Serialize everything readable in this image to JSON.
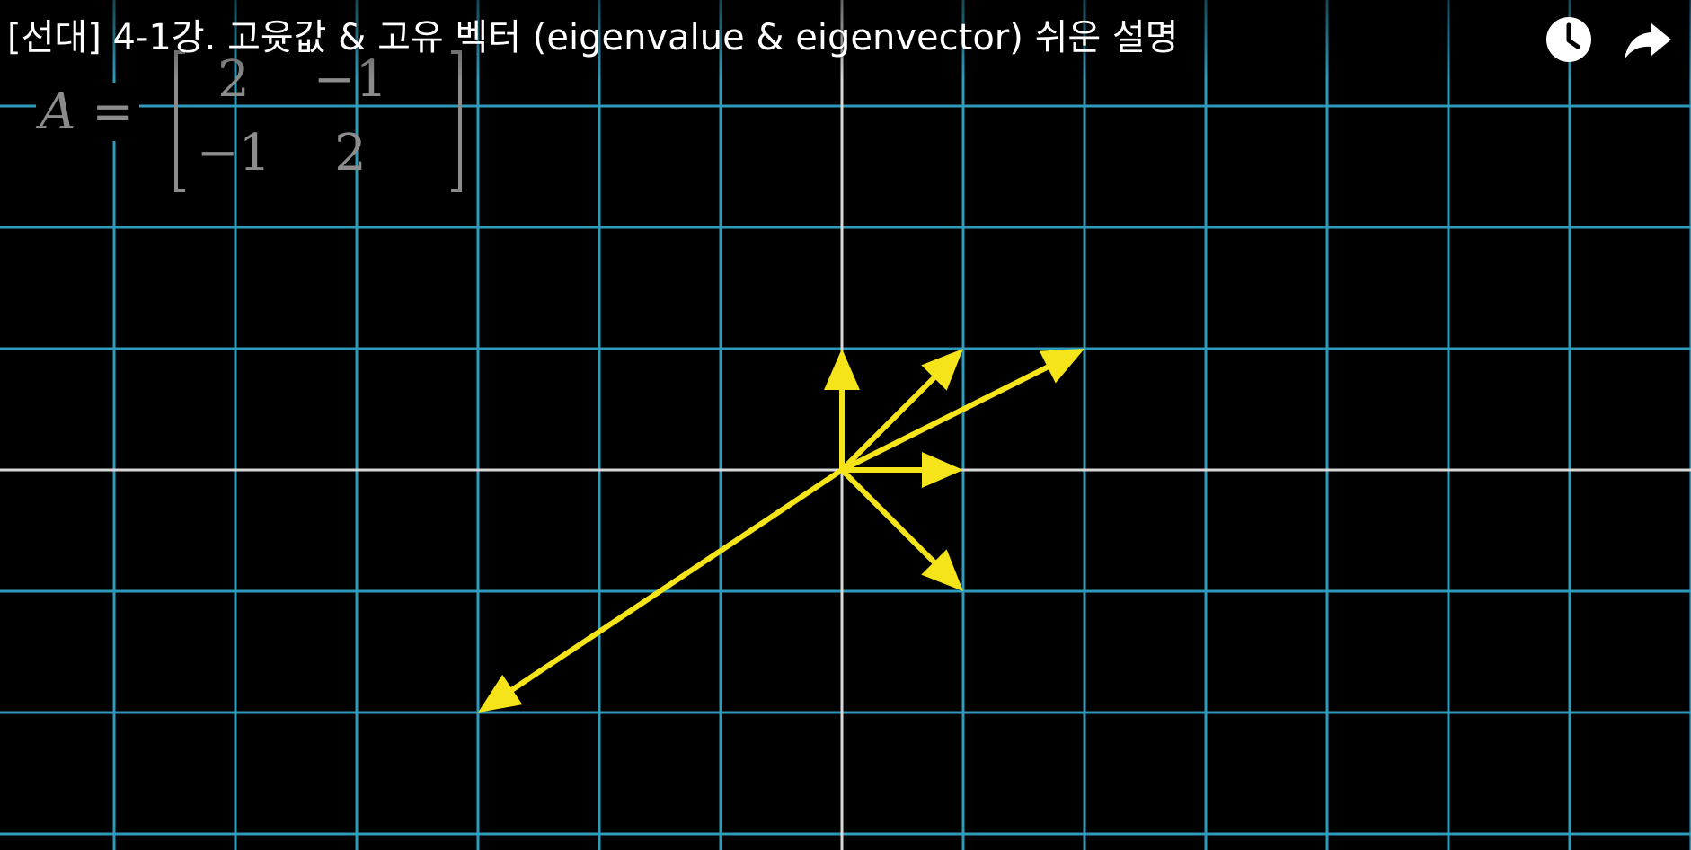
{
  "header": {
    "title": "[선대] 4-1강. 고윳값 & 고유 벡터 (eigenvalue & eigenvector) 쉬운 설명",
    "watch_later_icon": "clock-icon",
    "share_icon": "share-arrow-icon"
  },
  "equation": {
    "label": "A =",
    "matrix": [
      [
        "2",
        "−1"
      ],
      [
        "−1",
        "2"
      ]
    ]
  },
  "plane": {
    "grid_range_x": [
      -7,
      7
    ],
    "grid_range_y": [
      -3,
      3
    ],
    "vectors": [
      {
        "name": "vector-up",
        "x": 0,
        "y": 1
      },
      {
        "name": "vector-right",
        "x": 1,
        "y": 0
      },
      {
        "name": "vector-diagonal",
        "x": 1,
        "y": 1
      },
      {
        "name": "vector-down-right",
        "x": 1,
        "y": -1
      },
      {
        "name": "vector-long-up-right",
        "x": 2,
        "y": 1
      },
      {
        "name": "vector-long-down-left",
        "x": -3,
        "y": -2
      }
    ]
  },
  "colors": {
    "background": "#000000",
    "grid_line": "#2f9bbb",
    "axis_line": "#d8d8d8",
    "vector": "#f4e419",
    "title_text": "#ffffff",
    "matrix_text": "#8c8c8c"
  }
}
